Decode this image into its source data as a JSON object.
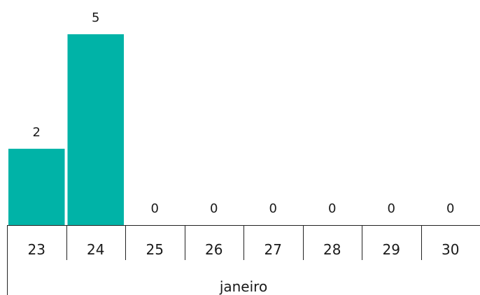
{
  "chart_data": {
    "type": "bar",
    "categories": [
      "23",
      "24",
      "25",
      "26",
      "27",
      "28",
      "29",
      "30"
    ],
    "values": [
      2,
      5,
      0,
      0,
      0,
      0,
      0,
      0
    ],
    "group_label": "janeiro",
    "title": "",
    "xlabel": "",
    "ylabel": "",
    "ylim": [
      0,
      5
    ],
    "grid": false,
    "legend": "none",
    "bar_color": "#00b3a7",
    "data_labels": true
  }
}
